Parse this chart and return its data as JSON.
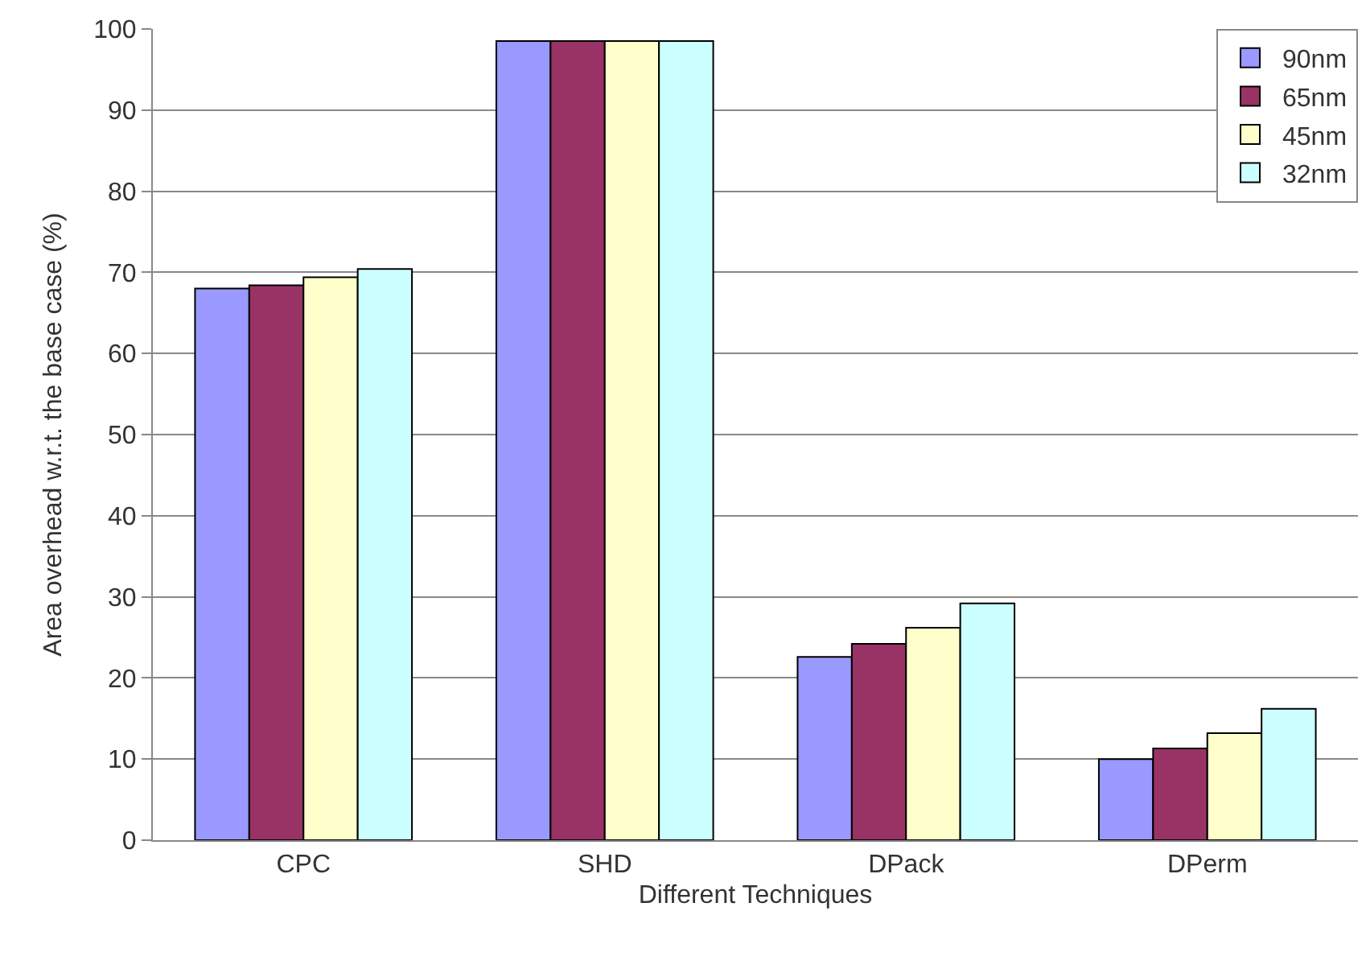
{
  "chart_data": {
    "type": "bar",
    "xlabel": "Different Techniques",
    "ylabel": "Area overhead w.r.t. the base case (%)",
    "categories": [
      "CPC",
      "SHD",
      "DPack",
      "DPerm"
    ],
    "series": [
      {
        "name": "90nm",
        "color": "#9999ff",
        "values": [
          68,
          98.5,
          22.6,
          10
        ]
      },
      {
        "name": "65nm",
        "color": "#993366",
        "values": [
          68.4,
          98.5,
          24.2,
          11.3
        ]
      },
      {
        "name": "45nm",
        "color": "#ffffcc",
        "values": [
          69.4,
          98.5,
          26.2,
          13.2
        ]
      },
      {
        "name": "32nm",
        "color": "#ccffff",
        "values": [
          70.4,
          98.5,
          29.2,
          16.2
        ]
      }
    ],
    "ylim": [
      0,
      100
    ],
    "yticks": [
      0,
      10,
      20,
      30,
      40,
      50,
      60,
      70,
      80,
      90,
      100
    ],
    "grid": "y",
    "legend": "top right"
  }
}
